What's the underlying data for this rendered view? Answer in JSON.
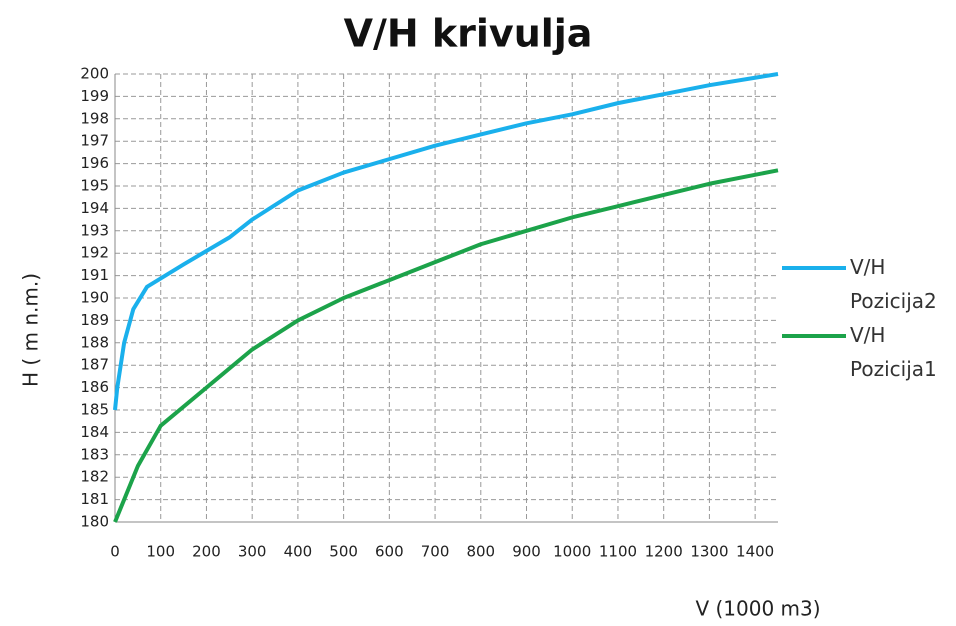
{
  "chart_data": {
    "type": "line",
    "title": "V/H krivulja",
    "xlabel": "V (1000 m3)",
    "ylabel": "H ( m n.m.)",
    "xlim": [
      0,
      1450
    ],
    "xticks": [
      0,
      100,
      200,
      300,
      400,
      500,
      600,
      700,
      800,
      900,
      1000,
      1100,
      1200,
      1300,
      1400
    ],
    "ylim": [
      180,
      200
    ],
    "yticks": [
      180,
      181,
      182,
      183,
      184,
      185,
      186,
      187,
      188,
      189,
      190,
      191,
      192,
      193,
      194,
      195,
      196,
      197,
      198,
      199,
      200
    ],
    "grid": true,
    "legend": "right",
    "series": [
      {
        "name": "V/H Pozicija2",
        "color": "#1ab0ec",
        "x": [
          0,
          5,
          20,
          40,
          70,
          150,
          250,
          300,
          400,
          500,
          600,
          700,
          800,
          900,
          1000,
          1100,
          1200,
          1300,
          1450
        ],
        "values": [
          185,
          186,
          188,
          189.5,
          190.5,
          191.5,
          192.7,
          193.5,
          194.8,
          195.6,
          196.2,
          196.8,
          197.3,
          197.8,
          198.2,
          198.7,
          199.1,
          199.5,
          200
        ]
      },
      {
        "name": "V/H Pozicija1",
        "color": "#1ca34a",
        "x": [
          0,
          20,
          50,
          100,
          200,
          300,
          400,
          500,
          600,
          700,
          800,
          900,
          1000,
          1100,
          1200,
          1300,
          1450
        ],
        "values": [
          180,
          181,
          182.5,
          184.3,
          186,
          187.7,
          189,
          190,
          190.8,
          191.6,
          192.4,
          193,
          193.6,
          194.1,
          194.6,
          195.1,
          195.7
        ]
      }
    ]
  }
}
